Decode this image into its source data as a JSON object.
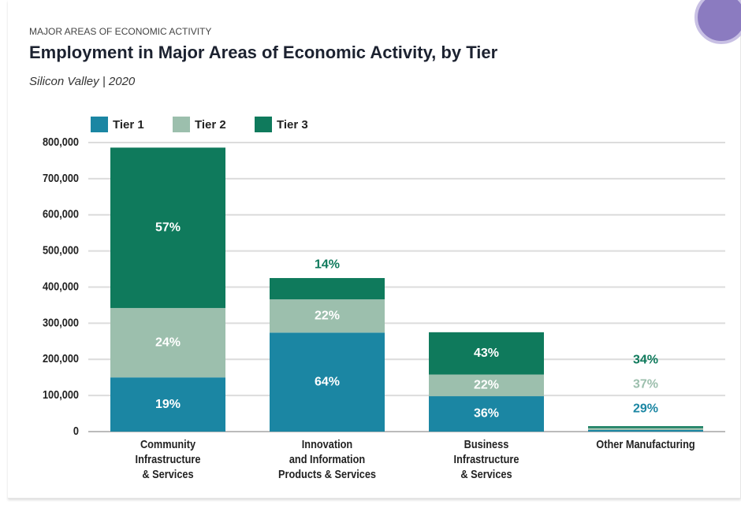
{
  "chart_data": {
    "type": "stacked_bar",
    "supertitle": "MAJOR AREAS OF ECONOMIC ACTIVITY",
    "title": "Employment in Major Areas of Economic Activity, by Tier",
    "subtitle": "Silicon Valley | 2020",
    "categories": [
      "Community\nInfrastructure\n& Services",
      "Innovation\nand Information\nProducts & Services",
      "Business\nInfrastructure\n& Services",
      "Other Manufacturing"
    ],
    "series": [
      {
        "name": "Tier 1",
        "color": "#1b86a3",
        "values": [
          150000,
          274000,
          98000,
          4400
        ],
        "labels": [
          "19%",
          "64%",
          "36%",
          "29%"
        ]
      },
      {
        "name": "Tier 2",
        "color": "#9cbfad",
        "values": [
          192000,
          92000,
          60000,
          5500
        ],
        "labels": [
          "24%",
          "22%",
          "22%",
          "37%"
        ]
      },
      {
        "name": "Tier 3",
        "color": "#0f7a5c",
        "values": [
          444000,
          59000,
          117000,
          5100
        ],
        "labels": [
          "57%",
          "14%",
          "43%",
          "34%"
        ]
      }
    ],
    "ylim": [
      0,
      800000
    ],
    "yticks": [
      0,
      {
        "value": 100000,
        "label": "100,000"
      },
      {
        "value": 200000,
        "label": "200,000"
      },
      {
        "value": 300000,
        "label": "300,000"
      },
      {
        "value": 400000,
        "label": "400,000"
      },
      {
        "value": 500000,
        "label": "500,000"
      },
      {
        "value": 600000,
        "label": "600,000"
      },
      {
        "value": 700000,
        "label": "700,000"
      },
      {
        "value": 800000,
        "label": "800,000"
      }
    ],
    "grid": true,
    "legend": "top-left"
  }
}
